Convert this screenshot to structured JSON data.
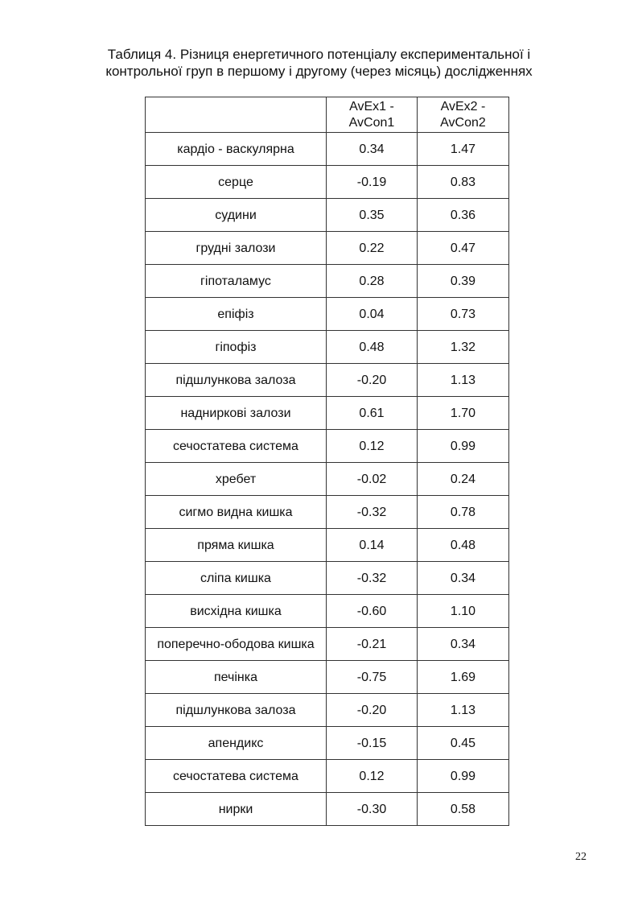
{
  "caption": {
    "line1": "Таблиця 4. Різниця енергетичного потенціалу експериментальної і",
    "line2": "контрольної груп в першому і другому (через місяць) дослідженнях"
  },
  "table": {
    "headers": [
      "",
      "AvEx1 - AvCon1",
      "AvEx2 - AvCon2"
    ],
    "rows": [
      [
        "кардіо - васкулярна",
        "0.34",
        "1.47"
      ],
      [
        "серце",
        "-0.19",
        "0.83"
      ],
      [
        "судини",
        "0.35",
        "0.36"
      ],
      [
        "грудні залози",
        "0.22",
        "0.47"
      ],
      [
        "гіпоталамус",
        "0.28",
        "0.39"
      ],
      [
        "епіфіз",
        "0.04",
        "0.73"
      ],
      [
        "гіпофіз",
        "0.48",
        "1.32"
      ],
      [
        "підшлункова залоза",
        "-0.20",
        "1.13"
      ],
      [
        "надниркові залози",
        "0.61",
        "1.70"
      ],
      [
        "сечостатева система",
        "0.12",
        "0.99"
      ],
      [
        "хребет",
        "-0.02",
        "0.24"
      ],
      [
        "сигмо видна кишка",
        "-0.32",
        "0.78"
      ],
      [
        "пряма кишка",
        "0.14",
        "0.48"
      ],
      [
        "сліпа кишка",
        "-0.32",
        "0.34"
      ],
      [
        "висхідна кишка",
        "-0.60",
        "1.10"
      ],
      [
        "поперечно-ободова кишка",
        "-0.21",
        "0.34"
      ],
      [
        "печінка",
        "-0.75",
        "1.69"
      ],
      [
        "підшлункова залоза",
        "-0.20",
        "1.13"
      ],
      [
        "апендикс",
        "-0.15",
        "0.45"
      ],
      [
        "сечостатева система",
        "0.12",
        "0.99"
      ],
      [
        "нирки",
        "-0.30",
        "0.58"
      ]
    ]
  },
  "page_number": "22"
}
